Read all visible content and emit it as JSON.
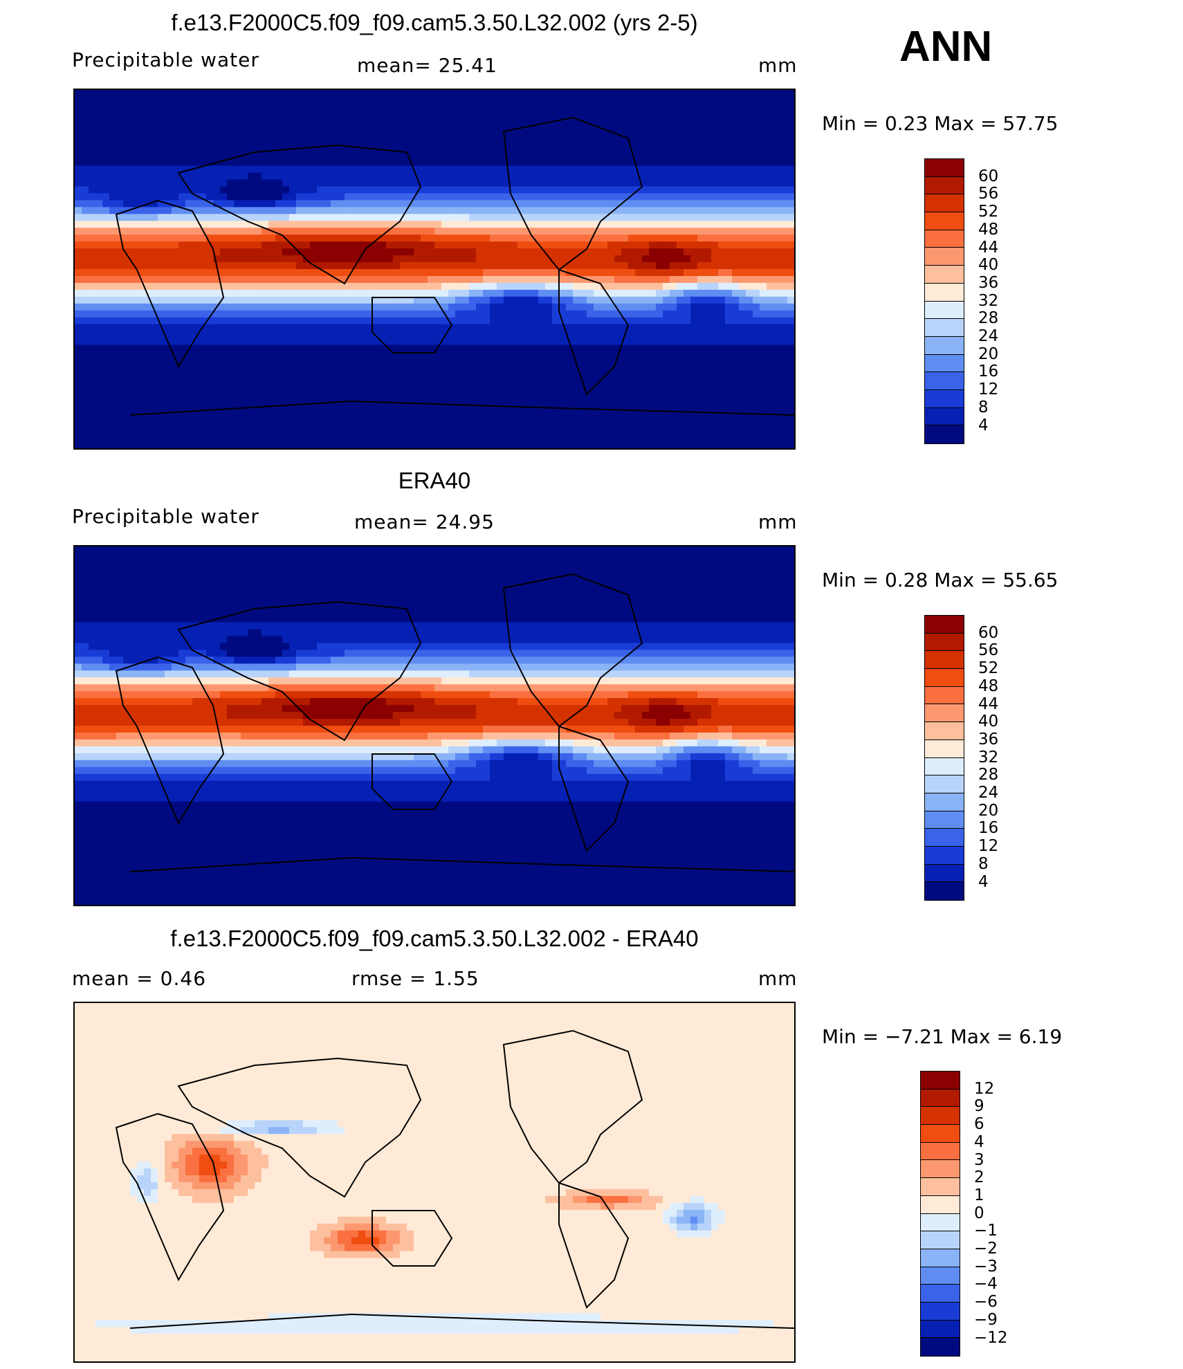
{
  "season": "ANN",
  "panels": [
    {
      "title": "f.e13.F2000C5.f09_f09.cam5.3.50.L32.002 (yrs 2-5)",
      "left_label": "Precipitable  water",
      "center_label": "mean=   25.41",
      "units": "mm",
      "minmax": "Min  =     0.23  Max  =     57.75",
      "kind": "abs",
      "bias_x": 0,
      "bias_amp": 0
    },
    {
      "title": "ERA40",
      "left_label": "Precipitable  water",
      "center_label": "mean=   24.95",
      "units": "mm",
      "minmax": "Min  =     0.28  Max  =     55.65",
      "kind": "abs",
      "bias_x": 0,
      "bias_amp": 0
    },
    {
      "title": "f.e13.F2000C5.f09_f09.cam5.3.50.L32.002 - ERA40",
      "left_label": "mean  =      0.46",
      "center_label": "rmse  =      1.55",
      "units": "mm",
      "minmax": "Min  =   −7.21  Max  =       6.19",
      "kind": "diff"
    }
  ],
  "colorbars": {
    "abs": {
      "labels": [
        "60",
        "56",
        "52",
        "48",
        "44",
        "40",
        "36",
        "32",
        "28",
        "24",
        "20",
        "16",
        "12",
        "8",
        "4"
      ],
      "colors": [
        "#8b0000",
        "#b21a00",
        "#d43200",
        "#f04d10",
        "#fa7040",
        "#fc9870",
        "#fdc09e",
        "#feead7",
        "#dfeefc",
        "#b8d4fb",
        "#8bb4f7",
        "#5f8df2",
        "#3a63ea",
        "#1a3cd6",
        "#0620b4",
        "#000a80"
      ]
    },
    "diff": {
      "labels": [
        "12",
        "9",
        "6",
        "4",
        "3",
        "2",
        "1",
        "0",
        "−1",
        "−2",
        "−3",
        "−4",
        "−6",
        "−9",
        "−12"
      ],
      "colors": [
        "#8b0000",
        "#b21a00",
        "#d43200",
        "#f04d10",
        "#fa7040",
        "#fc9870",
        "#fdc09e",
        "#feead7",
        "#dfeefc",
        "#b8d4fb",
        "#8bb4f7",
        "#5f8df2",
        "#3a63ea",
        "#1a3cd6",
        "#0620b4",
        "#000a80"
      ]
    }
  }
}
